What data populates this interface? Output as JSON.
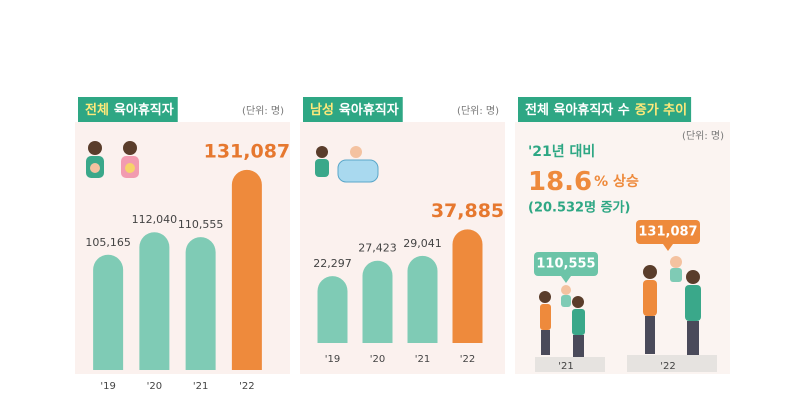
{
  "chart_data": [
    {
      "type": "bar",
      "title": [
        "전체",
        "육아휴직자"
      ],
      "unit": "(단위: 명)",
      "categories": [
        "'19",
        "'20",
        "'21",
        "'22"
      ],
      "values": [
        105165,
        112040,
        110555,
        131087
      ],
      "value_labels": [
        "105,165",
        "112,040",
        "110,555",
        "131,087"
      ],
      "colors": [
        "#7fcbb5",
        "#7fcbb5",
        "#7fcbb5",
        "#ee8a3c"
      ],
      "ylim": [
        70000,
        135000
      ]
    },
    {
      "type": "bar",
      "title": [
        "남성",
        "육아휴직자"
      ],
      "unit": "(단위: 명)",
      "categories": [
        "'19",
        "'20",
        "'21",
        "'22"
      ],
      "values": [
        22297,
        27423,
        29041,
        37885
      ],
      "value_labels": [
        "22,297",
        "27,423",
        "29,041",
        "37,885"
      ],
      "colors": [
        "#7fcbb5",
        "#7fcbb5",
        "#7fcbb5",
        "#ee8a3c"
      ],
      "ylim": [
        0,
        40000
      ]
    },
    {
      "type": "pictorial",
      "title": [
        "전체 육아휴직자 수",
        "증가 추이"
      ],
      "unit": "(단위: 명)",
      "annotations": [
        "'21년 대비",
        "18.6",
        "% 상승",
        "(20.532명 증가)"
      ],
      "categories": [
        "'21",
        "'22"
      ],
      "values": [
        110555,
        131087
      ],
      "value_labels": [
        "110,555",
        "131,087"
      ],
      "colors": [
        "#6cc4a8",
        "#ee8a3c"
      ]
    }
  ]
}
